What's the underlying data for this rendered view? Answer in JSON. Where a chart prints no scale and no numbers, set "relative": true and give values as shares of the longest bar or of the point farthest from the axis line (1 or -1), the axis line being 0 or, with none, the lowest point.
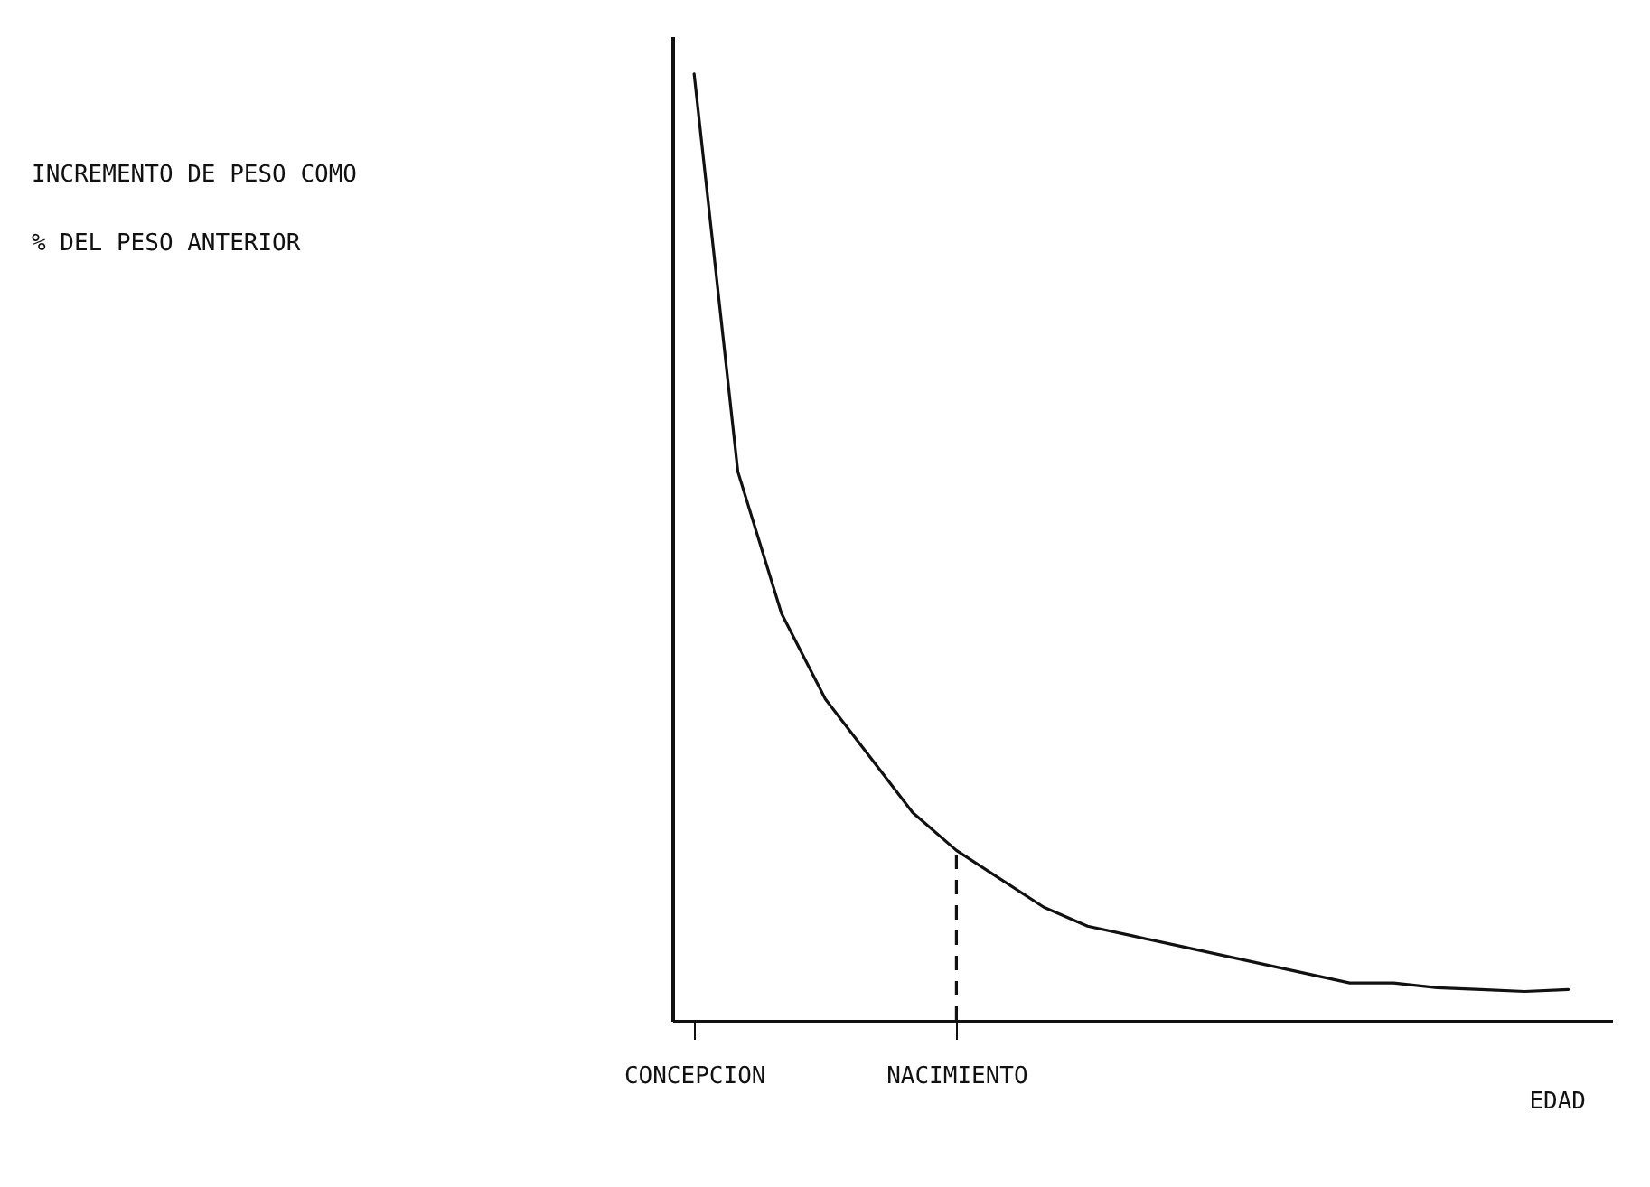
{
  "chart_data": {
    "type": "line",
    "relative": true,
    "xlabel": "EDAD",
    "ylabel": "INCREMENTO DE PESO COMO % DEL PESO ANTERIOR",
    "categories": [
      "CONCEPCION",
      null,
      null,
      null,
      null,
      null,
      "NACIMIENTO",
      null,
      null,
      null,
      null,
      null,
      null,
      null,
      null,
      null,
      null,
      null,
      null,
      null,
      null
    ],
    "series": [
      {
        "color": "#111111",
        "values": [
          1,
          0.58,
          0.43,
          0.34,
          0.28,
          0.22,
          0.18,
          0.15,
          0.12,
          0.1,
          0.09,
          0.08,
          0.07,
          0.06,
          0.05,
          0.04,
          0.04,
          0.035,
          0.033,
          0.031,
          0.033
        ]
      }
    ],
    "ref_lines": [
      {
        "axis": "x",
        "value": "NACIMIENTO",
        "color": "#111111",
        "line_style": "dashed"
      }
    ],
    "grid": false,
    "marker": "none",
    "line_style": "solid"
  }
}
